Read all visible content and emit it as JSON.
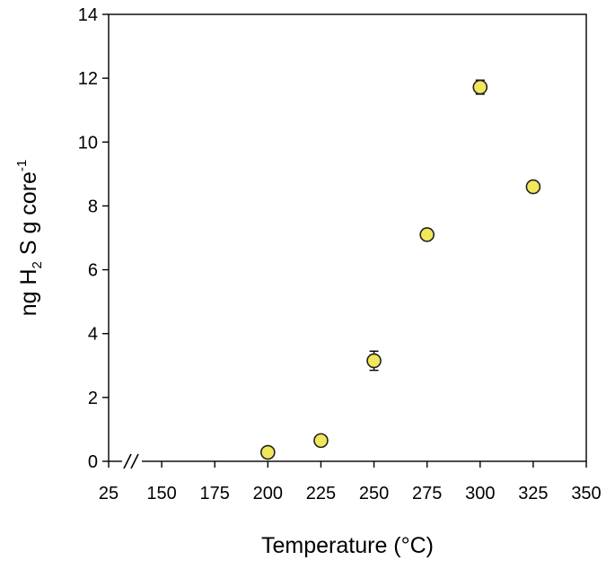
{
  "chart_data": {
    "type": "scatter",
    "title": "",
    "xlabel": "Temperature (°C)",
    "ylabel": "ng H2S g core-1",
    "ylabel_parts": {
      "a": "ng H",
      "sub": "2",
      "b": " S g core",
      "sup": "-1"
    },
    "x_ticks": [
      "25",
      "150",
      "175",
      "200",
      "225",
      "250",
      "275",
      "300",
      "325",
      "350"
    ],
    "y_ticks": [
      "0",
      "2",
      "4",
      "6",
      "8",
      "10",
      "12",
      "14"
    ],
    "ylim": [
      0,
      14
    ],
    "x_axis_break": "between 25 and 150",
    "grid": false,
    "legend": "none",
    "marker_color": "#f2e75a",
    "marker_edge_color": "#222222",
    "points": [
      {
        "x": 200,
        "y": 0.28,
        "err": 0
      },
      {
        "x": 225,
        "y": 0.65,
        "err": 0
      },
      {
        "x": 250,
        "y": 3.15,
        "err": 0.3
      },
      {
        "x": 275,
        "y": 7.1,
        "err": 0.12
      },
      {
        "x": 300,
        "y": 11.72,
        "err": 0.22
      },
      {
        "x": 325,
        "y": 8.6,
        "err": 0
      }
    ]
  }
}
